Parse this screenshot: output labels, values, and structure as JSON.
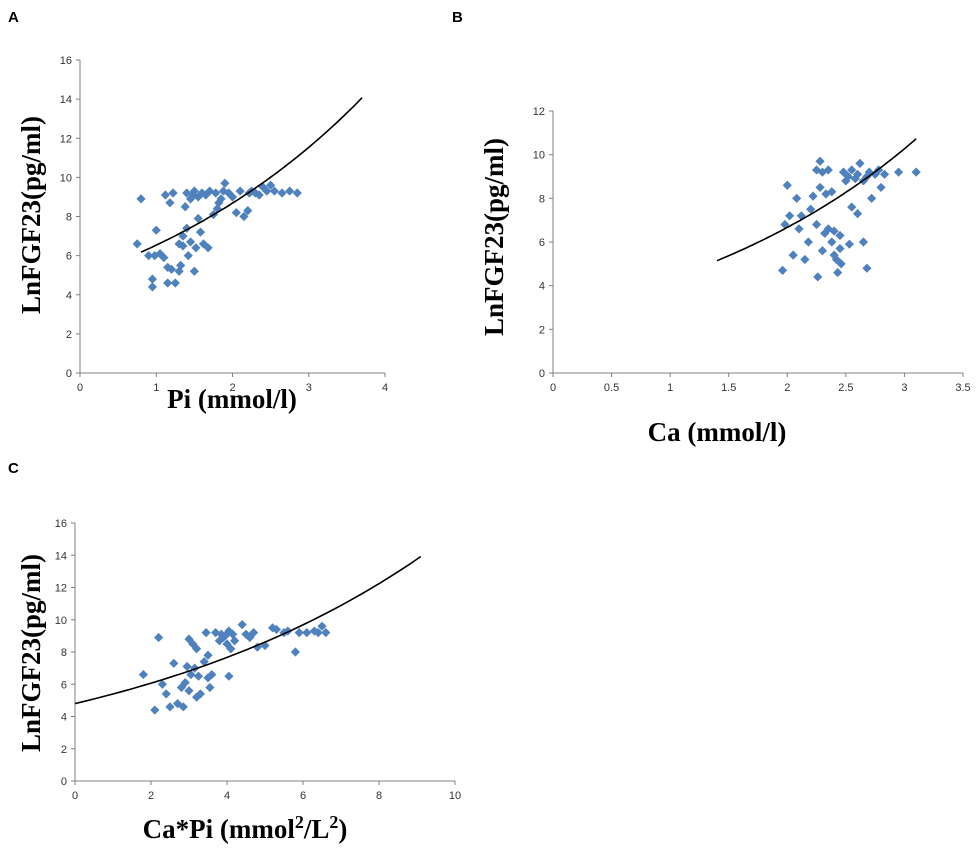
{
  "chart_data": [
    {
      "type": "scatter",
      "panel": "A",
      "xlabel": "Pi (mmol/l)",
      "ylabel": "LnFGF23(pg/ml)",
      "xlim": [
        0,
        4
      ],
      "ylim": [
        0,
        16
      ],
      "xticks": [
        0,
        1,
        2,
        3,
        4
      ],
      "yticks": [
        0,
        2,
        4,
        6,
        8,
        10,
        12,
        14,
        16
      ],
      "fit": {
        "form": "exponential",
        "a": 4.92,
        "b": 0.284,
        "x_range": [
          0.8,
          3.7
        ]
      },
      "points": [
        [
          0.75,
          6.6
        ],
        [
          0.8,
          8.9
        ],
        [
          0.9,
          6.0
        ],
        [
          0.95,
          4.4
        ],
        [
          0.95,
          4.8
        ],
        [
          0.98,
          6.0
        ],
        [
          1.0,
          7.3
        ],
        [
          1.05,
          6.1
        ],
        [
          1.1,
          5.9
        ],
        [
          1.12,
          9.1
        ],
        [
          1.15,
          5.4
        ],
        [
          1.15,
          4.6
        ],
        [
          1.18,
          8.7
        ],
        [
          1.2,
          5.3
        ],
        [
          1.22,
          9.2
        ],
        [
          1.25,
          4.6
        ],
        [
          1.3,
          5.2
        ],
        [
          1.3,
          6.6
        ],
        [
          1.32,
          5.5
        ],
        [
          1.35,
          6.5
        ],
        [
          1.35,
          7.0
        ],
        [
          1.38,
          8.5
        ],
        [
          1.4,
          7.4
        ],
        [
          1.4,
          9.2
        ],
        [
          1.42,
          6.0
        ],
        [
          1.45,
          6.7
        ],
        [
          1.45,
          8.9
        ],
        [
          1.48,
          9.1
        ],
        [
          1.5,
          5.2
        ],
        [
          1.5,
          9.3
        ],
        [
          1.52,
          6.4
        ],
        [
          1.55,
          7.9
        ],
        [
          1.55,
          9.0
        ],
        [
          1.58,
          7.2
        ],
        [
          1.6,
          9.2
        ],
        [
          1.62,
          6.6
        ],
        [
          1.65,
          9.1
        ],
        [
          1.68,
          6.4
        ],
        [
          1.7,
          9.3
        ],
        [
          1.75,
          8.1
        ],
        [
          1.78,
          9.2
        ],
        [
          1.8,
          8.4
        ],
        [
          1.82,
          8.7
        ],
        [
          1.85,
          8.9
        ],
        [
          1.88,
          9.3
        ],
        [
          1.9,
          9.7
        ],
        [
          1.95,
          9.2
        ],
        [
          2.0,
          9.0
        ],
        [
          2.05,
          8.2
        ],
        [
          2.1,
          9.3
        ],
        [
          2.15,
          8.0
        ],
        [
          2.2,
          8.3
        ],
        [
          2.22,
          9.2
        ],
        [
          2.25,
          9.3
        ],
        [
          2.3,
          9.2
        ],
        [
          2.35,
          9.1
        ],
        [
          2.4,
          9.5
        ],
        [
          2.45,
          9.3
        ],
        [
          2.5,
          9.6
        ],
        [
          2.55,
          9.3
        ],
        [
          2.65,
          9.2
        ],
        [
          2.75,
          9.3
        ],
        [
          2.85,
          9.2
        ]
      ]
    },
    {
      "type": "scatter",
      "panel": "B",
      "xlabel": "Ca (mmol/l)",
      "ylabel": "LnFGF23(pg/ml)",
      "xlim": [
        0,
        3.5
      ],
      "ylim": [
        0,
        12
      ],
      "xticks": [
        0,
        0.5,
        1,
        1.5,
        2,
        2.5,
        3,
        3.5
      ],
      "yticks": [
        0,
        2,
        4,
        6,
        8,
        10,
        12
      ],
      "fit": {
        "form": "exponential",
        "a": 2.81,
        "b": 0.432,
        "x_range": [
          1.4,
          3.1
        ]
      },
      "points": [
        [
          1.96,
          4.7
        ],
        [
          1.98,
          6.8
        ],
        [
          2.0,
          8.6
        ],
        [
          2.02,
          7.2
        ],
        [
          2.05,
          5.4
        ],
        [
          2.08,
          8.0
        ],
        [
          2.1,
          6.6
        ],
        [
          2.12,
          7.2
        ],
        [
          2.15,
          5.2
        ],
        [
          2.18,
          6.0
        ],
        [
          2.2,
          7.5
        ],
        [
          2.22,
          8.1
        ],
        [
          2.25,
          6.8
        ],
        [
          2.25,
          9.3
        ],
        [
          2.26,
          4.4
        ],
        [
          2.28,
          8.5
        ],
        [
          2.28,
          9.7
        ],
        [
          2.3,
          9.2
        ],
        [
          2.3,
          5.6
        ],
        [
          2.32,
          6.4
        ],
        [
          2.33,
          8.2
        ],
        [
          2.35,
          6.6
        ],
        [
          2.35,
          9.3
        ],
        [
          2.38,
          6.0
        ],
        [
          2.38,
          8.3
        ],
        [
          2.4,
          5.4
        ],
        [
          2.4,
          6.5
        ],
        [
          2.42,
          5.2
        ],
        [
          2.43,
          4.6
        ],
        [
          2.45,
          5.7
        ],
        [
          2.45,
          6.3
        ],
        [
          2.46,
          5.0
        ],
        [
          2.48,
          9.2
        ],
        [
          2.5,
          8.8
        ],
        [
          2.52,
          9.0
        ],
        [
          2.53,
          5.9
        ],
        [
          2.55,
          7.6
        ],
        [
          2.55,
          9.3
        ],
        [
          2.58,
          8.9
        ],
        [
          2.6,
          9.1
        ],
        [
          2.6,
          7.3
        ],
        [
          2.62,
          9.6
        ],
        [
          2.65,
          8.8
        ],
        [
          2.65,
          6.0
        ],
        [
          2.68,
          4.8
        ],
        [
          2.68,
          9.0
        ],
        [
          2.7,
          9.2
        ],
        [
          2.72,
          8.0
        ],
        [
          2.75,
          9.1
        ],
        [
          2.78,
          9.3
        ],
        [
          2.8,
          8.5
        ],
        [
          2.83,
          9.1
        ],
        [
          2.95,
          9.2
        ],
        [
          3.1,
          9.2
        ]
      ]
    },
    {
      "type": "scatter",
      "panel": "C",
      "xlabel": "Ca*Pi (mmol²/L²)",
      "ylabel": "LnFGF23(pg/ml)",
      "xlim": [
        0,
        10
      ],
      "ylim": [
        0,
        16
      ],
      "xticks": [
        0,
        2,
        4,
        6,
        8,
        10
      ],
      "yticks": [
        0,
        2,
        4,
        6,
        8,
        10,
        12,
        14,
        16
      ],
      "fit": {
        "form": "exponential",
        "a": 4.8,
        "b": 0.117,
        "x_range": [
          0,
          9.1
        ]
      },
      "points": [
        [
          1.8,
          6.6
        ],
        [
          2.1,
          4.4
        ],
        [
          2.2,
          8.9
        ],
        [
          2.3,
          6.0
        ],
        [
          2.4,
          5.4
        ],
        [
          2.5,
          4.6
        ],
        [
          2.6,
          7.3
        ],
        [
          2.7,
          4.8
        ],
        [
          2.8,
          5.8
        ],
        [
          2.85,
          4.6
        ],
        [
          2.9,
          6.1
        ],
        [
          2.95,
          7.1
        ],
        [
          3.0,
          5.6
        ],
        [
          3.0,
          8.8
        ],
        [
          3.05,
          6.6
        ],
        [
          3.1,
          8.5
        ],
        [
          3.15,
          7.0
        ],
        [
          3.2,
          8.2
        ],
        [
          3.2,
          5.2
        ],
        [
          3.25,
          6.5
        ],
        [
          3.3,
          5.4
        ],
        [
          3.4,
          7.4
        ],
        [
          3.45,
          9.2
        ],
        [
          3.5,
          6.4
        ],
        [
          3.5,
          7.8
        ],
        [
          3.55,
          5.8
        ],
        [
          3.6,
          6.6
        ],
        [
          3.7,
          9.2
        ],
        [
          3.8,
          8.7
        ],
        [
          3.85,
          9.1
        ],
        [
          3.9,
          8.9
        ],
        [
          3.95,
          9.0
        ],
        [
          4.0,
          8.5
        ],
        [
          4.05,
          9.3
        ],
        [
          4.05,
          6.5
        ],
        [
          4.1,
          8.2
        ],
        [
          4.15,
          9.1
        ],
        [
          4.2,
          8.7
        ],
        [
          4.4,
          9.7
        ],
        [
          4.5,
          9.1
        ],
        [
          4.6,
          8.9
        ],
        [
          4.7,
          9.2
        ],
        [
          4.8,
          8.3
        ],
        [
          5.0,
          8.4
        ],
        [
          5.2,
          9.5
        ],
        [
          5.3,
          9.4
        ],
        [
          5.5,
          9.2
        ],
        [
          5.6,
          9.3
        ],
        [
          5.8,
          8.0
        ],
        [
          5.9,
          9.2
        ],
        [
          6.1,
          9.2
        ],
        [
          6.3,
          9.3
        ],
        [
          6.4,
          9.2
        ],
        [
          6.5,
          9.6
        ],
        [
          6.6,
          9.2
        ]
      ]
    }
  ]
}
